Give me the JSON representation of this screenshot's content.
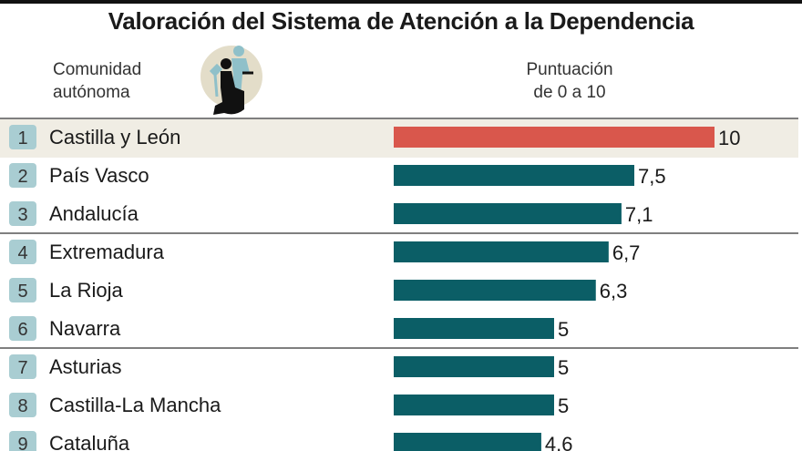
{
  "chart_data": {
    "type": "bar",
    "orientation": "horizontal",
    "title": "Valoración del Sistema de Atención a la Dependencia",
    "category_header": [
      "Comunidad",
      "autónoma"
    ],
    "value_header": [
      "Puntuación",
      "de 0 a 10"
    ],
    "xlim": [
      0,
      10
    ],
    "grid": false,
    "ranks": [
      "1",
      "2",
      "3",
      "4",
      "5",
      "6",
      "7",
      "8",
      "9"
    ],
    "categories": [
      "Castilla y León",
      "País Vasco",
      "Andalucía",
      "Extremadura",
      "La Rioja",
      "Navarra",
      "Asturias",
      "Castilla-La Mancha",
      "Cataluña"
    ],
    "values": [
      10,
      7.5,
      7.1,
      6.7,
      6.3,
      5,
      5,
      5,
      4.6
    ],
    "value_labels": [
      "10",
      "7,5",
      "7,1",
      "6,7",
      "6,3",
      "5",
      "5",
      "5",
      "4.6"
    ],
    "highlight_index": 0,
    "colors": {
      "highlight_bar": "#d9574c",
      "bar": "#0b5e66",
      "highlight_band": "#f0ede4",
      "rank_badge": "#a9cdd2",
      "divider": "#555555"
    }
  },
  "icon": "wheelchair-caregiver-icon"
}
